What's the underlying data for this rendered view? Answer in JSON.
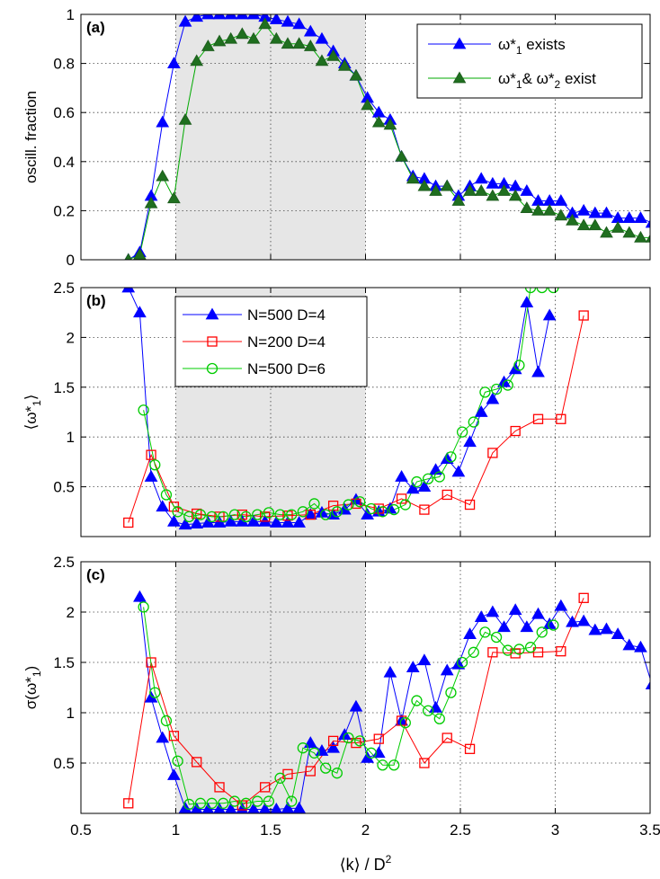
{
  "chart_data": [
    {
      "type": "line",
      "panel_label": "(a)",
      "ylabel": "oscill. fraction",
      "xlim": [
        0.5,
        3.5
      ],
      "ylim": [
        0,
        1
      ],
      "yticks": [
        0,
        0.2,
        0.4,
        0.6,
        0.8,
        1
      ],
      "ytick_labels": [
        "0",
        "0.2",
        "0.4",
        "0.6",
        "0.8",
        "1"
      ],
      "grid": true,
      "shaded_x": [
        1,
        2
      ],
      "legend_position": "top-right",
      "series": [
        {
          "legend_main": "ω*",
          "legend_sub": "1",
          "legend_rest": " exists",
          "color": "#0000ff",
          "marker": "triangle",
          "marker_fill": "#0000ff",
          "x": [
            0.75,
            0.81,
            0.87,
            0.93,
            0.99,
            1.05,
            1.11,
            1.17,
            1.23,
            1.29,
            1.35,
            1.41,
            1.47,
            1.53,
            1.59,
            1.65,
            1.71,
            1.77,
            1.83,
            1.89,
            1.95,
            2.01,
            2.07,
            2.13,
            2.19,
            2.25,
            2.31,
            2.37,
            2.43,
            2.49,
            2.55,
            2.61,
            2.67,
            2.73,
            2.79,
            2.85,
            2.91,
            2.97,
            3.03,
            3.09,
            3.15,
            3.21,
            3.27,
            3.33,
            3.39,
            3.45,
            3.51
          ],
          "y": [
            0,
            0.03,
            0.26,
            0.56,
            0.8,
            0.97,
            0.99,
            1.0,
            1.0,
            1.0,
            1.0,
            1.0,
            0.99,
            0.98,
            0.97,
            0.96,
            0.93,
            0.9,
            0.85,
            0.8,
            0.75,
            0.66,
            0.6,
            0.57,
            0.42,
            0.34,
            0.33,
            0.3,
            0.3,
            0.26,
            0.3,
            0.33,
            0.31,
            0.31,
            0.3,
            0.28,
            0.24,
            0.24,
            0.24,
            0.19,
            0.2,
            0.19,
            0.19,
            0.17,
            0.17,
            0.17,
            0.15
          ]
        },
        {
          "legend_main": "ω*",
          "legend_sub": "1",
          "legend_rest": "& ω*",
          "legend_sub2": "2",
          "legend_rest2": " exist",
          "color": "#00aa00",
          "marker": "triangle",
          "marker_fill": "#1f6f1f",
          "x": [
            0.75,
            0.81,
            0.87,
            0.93,
            0.99,
            1.05,
            1.11,
            1.17,
            1.23,
            1.29,
            1.35,
            1.41,
            1.47,
            1.53,
            1.59,
            1.65,
            1.71,
            1.77,
            1.83,
            1.89,
            1.95,
            2.01,
            2.07,
            2.13,
            2.19,
            2.25,
            2.31,
            2.37,
            2.43,
            2.49,
            2.55,
            2.61,
            2.67,
            2.73,
            2.79,
            2.85,
            2.91,
            2.97,
            3.03,
            3.09,
            3.15,
            3.21,
            3.27,
            3.33,
            3.39,
            3.45,
            3.51
          ],
          "y": [
            0,
            0.02,
            0.23,
            0.34,
            0.25,
            0.57,
            0.81,
            0.87,
            0.89,
            0.9,
            0.92,
            0.9,
            0.96,
            0.9,
            0.88,
            0.88,
            0.87,
            0.81,
            0.83,
            0.79,
            0.75,
            0.63,
            0.56,
            0.55,
            0.42,
            0.33,
            0.3,
            0.28,
            0.3,
            0.24,
            0.28,
            0.28,
            0.26,
            0.28,
            0.26,
            0.21,
            0.2,
            0.2,
            0.18,
            0.16,
            0.14,
            0.14,
            0.11,
            0.13,
            0.11,
            0.09,
            0.09
          ]
        }
      ]
    },
    {
      "type": "line",
      "panel_label": "(b)",
      "ylabel_main": "⟨ω*",
      "ylabel_sub": "1",
      "ylabel_end": "⟩",
      "xlim": [
        0.5,
        3.5
      ],
      "ylim": [
        0,
        2.5
      ],
      "yticks": [
        0.5,
        1,
        1.5,
        2,
        2.5
      ],
      "ytick_labels": [
        "0.5",
        "1",
        "1.5",
        "2",
        "2.5"
      ],
      "grid": true,
      "shaded_x": [
        1,
        2
      ],
      "legend_position": "top-left",
      "series": [
        {
          "name": "N=500 D=4",
          "color": "#0000ff",
          "marker": "triangle",
          "marker_fill": "#0000ff",
          "x": [
            0.75,
            0.81,
            0.87,
            0.93,
            0.99,
            1.05,
            1.11,
            1.17,
            1.23,
            1.29,
            1.35,
            1.41,
            1.47,
            1.53,
            1.59,
            1.65,
            1.71,
            1.77,
            1.83,
            1.89,
            1.95,
            2.01,
            2.07,
            2.13,
            2.19,
            2.25,
            2.31,
            2.37,
            2.43,
            2.49,
            2.55,
            2.61,
            2.67,
            2.73,
            2.79,
            2.85,
            2.91,
            2.97
          ],
          "y": [
            2.5,
            2.25,
            0.6,
            0.3,
            0.15,
            0.12,
            0.13,
            0.14,
            0.14,
            0.15,
            0.15,
            0.15,
            0.15,
            0.14,
            0.14,
            0.14,
            0.22,
            0.24,
            0.22,
            0.27,
            0.37,
            0.22,
            0.25,
            0.28,
            0.6,
            0.48,
            0.5,
            0.67,
            0.78,
            0.65,
            0.95,
            1.25,
            1.38,
            1.55,
            1.68,
            2.35,
            1.65,
            2.22
          ]
        },
        {
          "name": "N=200 D=4",
          "color": "#ff0000",
          "marker": "square",
          "marker_fill": "none",
          "x": [
            0.75,
            0.87,
            0.99,
            1.11,
            1.23,
            1.35,
            1.47,
            1.59,
            1.71,
            1.83,
            1.95,
            2.07,
            2.19,
            2.31,
            2.43,
            2.55,
            2.67,
            2.79,
            2.91,
            3.03,
            3.15
          ],
          "y": [
            0.14,
            0.82,
            0.3,
            0.23,
            0.2,
            0.22,
            0.2,
            0.21,
            0.22,
            0.31,
            0.33,
            0.28,
            0.38,
            0.27,
            0.42,
            0.32,
            0.84,
            1.06,
            1.18,
            1.18,
            2.22
          ]
        },
        {
          "name": "N=500 D=6",
          "color": "#00cc00",
          "marker": "circle",
          "marker_fill": "none",
          "x": [
            0.83,
            0.89,
            0.95,
            1.01,
            1.07,
            1.13,
            1.19,
            1.25,
            1.31,
            1.37,
            1.43,
            1.49,
            1.55,
            1.61,
            1.67,
            1.73,
            1.79,
            1.85,
            1.91,
            1.97,
            2.03,
            2.09,
            2.15,
            2.21,
            2.27,
            2.33,
            2.39,
            2.45,
            2.51,
            2.57,
            2.63,
            2.69,
            2.75,
            2.81,
            2.87,
            2.93,
            2.99
          ],
          "y": [
            1.27,
            0.72,
            0.42,
            0.25,
            0.2,
            0.22,
            0.2,
            0.2,
            0.22,
            0.2,
            0.22,
            0.24,
            0.22,
            0.22,
            0.25,
            0.33,
            0.22,
            0.25,
            0.32,
            0.35,
            0.28,
            0.25,
            0.27,
            0.32,
            0.55,
            0.58,
            0.6,
            0.8,
            1.05,
            1.15,
            1.45,
            1.48,
            1.52,
            1.72,
            2.5,
            2.5,
            2.5
          ]
        }
      ]
    },
    {
      "type": "line",
      "panel_label": "(c)",
      "ylabel_main": "σ(ω*",
      "ylabel_sub": "1",
      "ylabel_end": ")",
      "xlabel_main": "⟨k⟩ / D",
      "xlabel_sup": "2",
      "xlim": [
        0.5,
        3.5
      ],
      "ylim": [
        0,
        2.5
      ],
      "xticks": [
        0.5,
        1,
        1.5,
        2,
        2.5,
        3,
        3.5
      ],
      "xtick_labels": [
        "0.5",
        "1",
        "1.5",
        "2",
        "2.5",
        "3",
        "3.5"
      ],
      "yticks": [
        0.5,
        1,
        1.5,
        2,
        2.5
      ],
      "ytick_labels": [
        "0.5",
        "1",
        "1.5",
        "2",
        "2.5"
      ],
      "grid": true,
      "shaded_x": [
        1,
        2
      ],
      "series": [
        {
          "name": "N=500 D=4",
          "color": "#0000ff",
          "marker": "triangle",
          "marker_fill": "#0000ff",
          "x": [
            0.81,
            0.87,
            0.93,
            0.99,
            1.05,
            1.11,
            1.17,
            1.23,
            1.29,
            1.35,
            1.41,
            1.47,
            1.53,
            1.59,
            1.65,
            1.71,
            1.77,
            1.83,
            1.89,
            1.95,
            2.01,
            2.07,
            2.13,
            2.19,
            2.25,
            2.31,
            2.37,
            2.43,
            2.49,
            2.55,
            2.61,
            2.67,
            2.73,
            2.79,
            2.85,
            2.91,
            2.97,
            3.03,
            3.09,
            3.15,
            3.21,
            3.27,
            3.33,
            3.39,
            3.45,
            3.51
          ],
          "y": [
            2.15,
            1.15,
            0.75,
            0.38,
            0.05,
            0.04,
            0.04,
            0.04,
            0.04,
            0.04,
            0.04,
            0.04,
            0.04,
            0.05,
            0.05,
            0.7,
            0.62,
            0.65,
            0.78,
            1.06,
            0.55,
            0.6,
            1.4,
            0.92,
            1.45,
            1.52,
            1.05,
            1.42,
            1.48,
            1.78,
            1.95,
            2.0,
            1.85,
            2.02,
            1.85,
            1.98,
            1.88,
            2.06,
            1.9,
            1.91,
            1.82,
            1.83,
            1.78,
            1.67,
            1.65,
            1.28
          ]
        },
        {
          "name": "N=200 D=4",
          "color": "#ff0000",
          "marker": "square",
          "marker_fill": "none",
          "x": [
            0.75,
            0.87,
            0.99,
            1.11,
            1.23,
            1.35,
            1.47,
            1.59,
            1.71,
            1.83,
            1.95,
            2.07,
            2.19,
            2.31,
            2.43,
            2.55,
            2.67,
            2.79,
            2.91,
            3.03,
            3.15
          ],
          "y": [
            0.1,
            1.5,
            0.77,
            0.51,
            0.26,
            0.08,
            0.26,
            0.39,
            0.42,
            0.72,
            0.7,
            0.74,
            0.92,
            0.5,
            0.75,
            0.64,
            1.6,
            1.59,
            1.6,
            1.61,
            2.14
          ]
        },
        {
          "name": "N=500 D=6",
          "color": "#00cc00",
          "marker": "circle",
          "marker_fill": "none",
          "x": [
            0.83,
            0.89,
            0.95,
            1.01,
            1.07,
            1.13,
            1.19,
            1.25,
            1.31,
            1.37,
            1.43,
            1.49,
            1.55,
            1.61,
            1.67,
            1.73,
            1.79,
            1.85,
            1.91,
            1.97,
            2.03,
            2.09,
            2.15,
            2.21,
            2.27,
            2.33,
            2.39,
            2.45,
            2.51,
            2.57,
            2.63,
            2.69,
            2.75,
            2.81,
            2.87,
            2.93,
            2.99
          ],
          "y": [
            2.05,
            1.2,
            0.92,
            0.52,
            0.09,
            0.1,
            0.1,
            0.1,
            0.12,
            0.1,
            0.12,
            0.12,
            0.35,
            0.12,
            0.65,
            0.6,
            0.45,
            0.4,
            0.75,
            0.72,
            0.6,
            0.48,
            0.48,
            0.9,
            1.12,
            1.02,
            0.94,
            1.2,
            1.5,
            1.6,
            1.8,
            1.75,
            1.62,
            1.63,
            1.65,
            1.8,
            1.87
          ]
        }
      ]
    }
  ]
}
